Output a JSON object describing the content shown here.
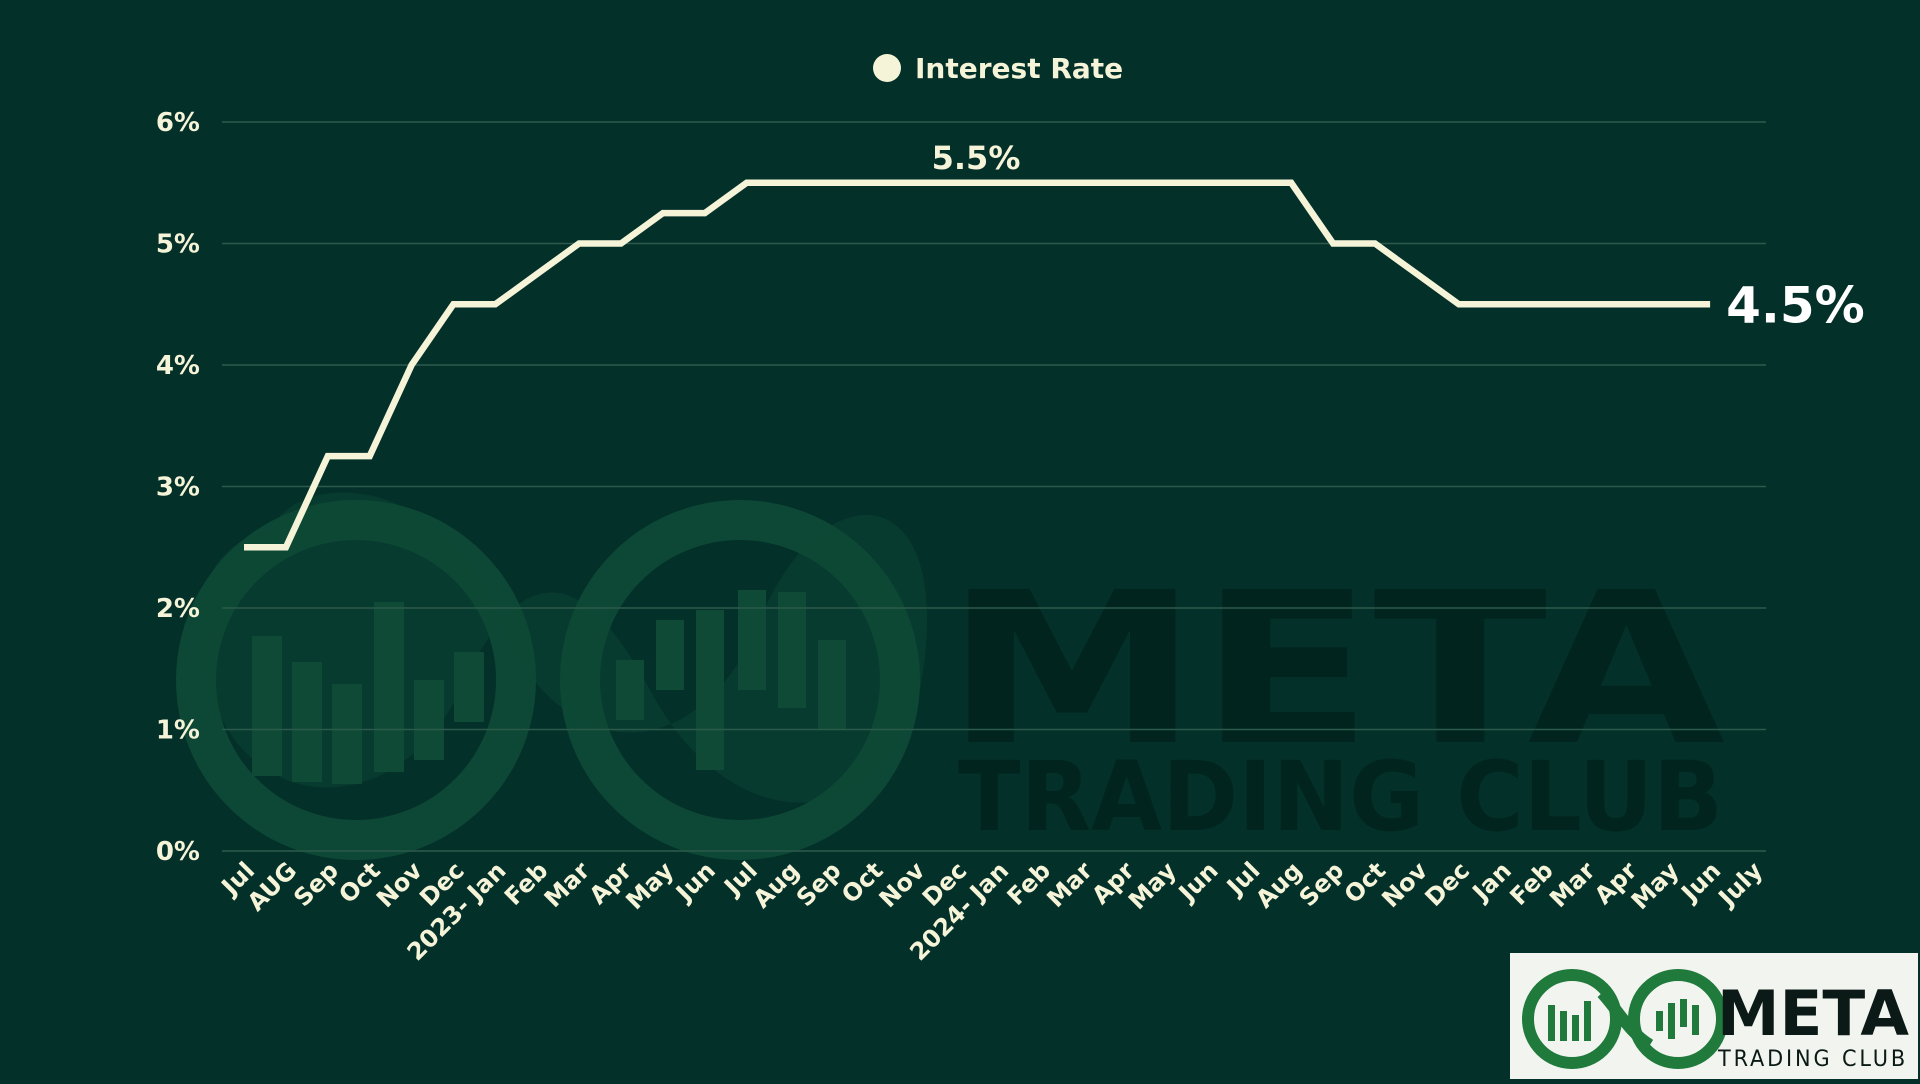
{
  "chart_data": {
    "type": "line",
    "title": "",
    "xlabel": "",
    "ylabel": "",
    "legend": {
      "position": "top-center",
      "marker_color": "#f6f4d8"
    },
    "ylim": [
      0,
      6
    ],
    "yticks": [
      "0%",
      "1%",
      "2%",
      "3%",
      "4%",
      "5%",
      "6%"
    ],
    "grid": true,
    "categories": [
      "Jul",
      "AUG",
      "Sep",
      "Oct",
      "Nov",
      "Dec",
      "2023- Jan",
      "Feb",
      "Mar",
      "Apr",
      "May",
      "Jun",
      "Jul",
      "Aug",
      "Sep",
      "Oct",
      "Nov",
      "Dec",
      "2024- Jan",
      "Feb",
      "Mar",
      "Apr",
      "May",
      "Jun",
      "Jul",
      "Aug",
      "Sep",
      "Oct",
      "Nov",
      "Dec",
      "Jan",
      "Feb",
      "Mar",
      "Apr",
      "May",
      "Jun",
      "July"
    ],
    "series": [
      {
        "name": "Interest Rate",
        "color": "#f6f4d8",
        "values": [
          2.5,
          2.5,
          3.25,
          3.25,
          4.0,
          4.5,
          4.5,
          4.75,
          5.0,
          5.0,
          5.25,
          5.25,
          5.5,
          5.5,
          5.5,
          5.5,
          5.5,
          5.5,
          5.5,
          5.5,
          5.5,
          5.5,
          5.5,
          5.5,
          5.5,
          5.5,
          5.0,
          5.0,
          4.75,
          4.5,
          4.5,
          4.5,
          4.5,
          4.5,
          4.5,
          4.5,
          null
        ]
      }
    ],
    "annotations": [
      {
        "text": "5.5%",
        "category_index": 18,
        "value": 5.5,
        "style": "small"
      },
      {
        "text": "4.5%",
        "category_index": 35,
        "value": 4.5,
        "style": "large"
      }
    ],
    "background_color": "#04302a"
  },
  "watermark": {
    "word": "META",
    "subtitle": "TRADING CLUB"
  },
  "logo": {
    "word": "META",
    "subtitle": "TRADING CLUB",
    "ring_color": "#1f7a3c"
  }
}
